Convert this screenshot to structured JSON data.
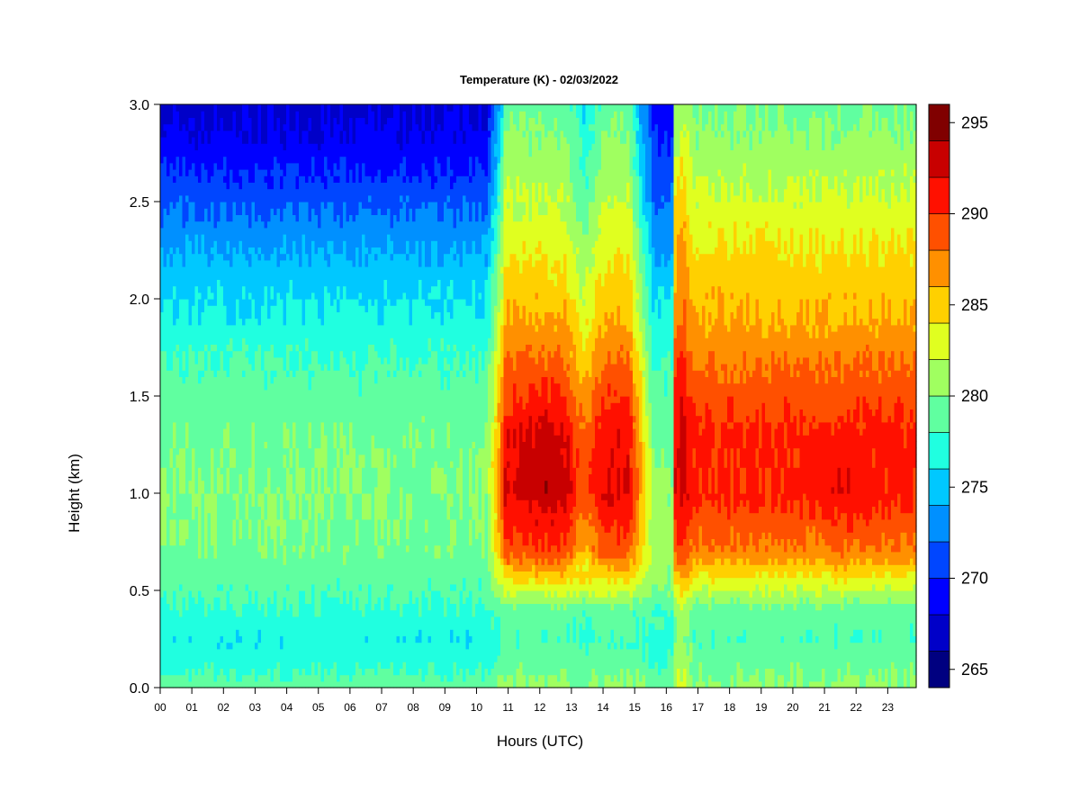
{
  "chart_data": {
    "type": "heatmap",
    "title": "Temperature (K) - 02/03/2022",
    "xlabel": "Hours (UTC)",
    "ylabel": "Height (km)",
    "xlim": [
      0,
      23.9
    ],
    "ylim": [
      0,
      3.0
    ],
    "x_ticks": [
      "00",
      "01",
      "02",
      "03",
      "04",
      "05",
      "06",
      "07",
      "08",
      "09",
      "10",
      "11",
      "12",
      "13",
      "14",
      "15",
      "16",
      "17",
      "18",
      "19",
      "20",
      "21",
      "22",
      "23"
    ],
    "y_ticks": [
      "0.0",
      "0.5",
      "1.0",
      "1.5",
      "2.0",
      "2.5",
      "3.0"
    ],
    "colorbar": {
      "range": [
        264,
        296
      ],
      "levels": [
        264,
        266,
        268,
        270,
        272,
        274,
        276,
        278,
        280,
        282,
        284,
        286,
        288,
        290,
        292,
        294,
        296
      ],
      "ticks": [
        "265",
        "270",
        "275",
        "280",
        "285",
        "290",
        "295"
      ],
      "colors": [
        "#000080",
        "#0000c8",
        "#0000ff",
        "#0046ff",
        "#0090ff",
        "#00c8ff",
        "#20ffe0",
        "#60ffa0",
        "#a0ff60",
        "#e0ff20",
        "#ffd000",
        "#ff9000",
        "#ff5000",
        "#ff1000",
        "#c80000",
        "#800000"
      ]
    },
    "z_description_grid": {
      "x": [
        0,
        1,
        2,
        3,
        4,
        5,
        6,
        7,
        8,
        9,
        10,
        10.5,
        10.8,
        11.2,
        12,
        13,
        14,
        14.8,
        15.4,
        15.9,
        16.3,
        17,
        18,
        19,
        20,
        21,
        22,
        23,
        23.9
      ],
      "y": [
        0,
        0.1,
        0.25,
        0.4,
        0.5,
        0.7,
        1.0,
        1.3,
        1.6,
        1.9,
        2.2,
        2.5,
        2.8,
        3.0
      ],
      "note": "temperature values in K by height row (bottom to top), per x column"
    }
  }
}
